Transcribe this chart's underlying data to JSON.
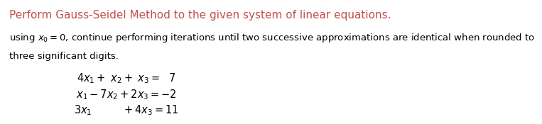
{
  "title": "Perform Gauss-Seidel Method to the given system of linear equations.",
  "title_color": "#C0504D",
  "subtitle_line1": "using $x_0 = 0$, continue performing iterations until two successive approximations are identical when rounded to",
  "subtitle_line2": "three significant digits.",
  "eq1": "$4x_1 + \\ x_2 + \\ x_3 = \\ \\ 7$",
  "eq2": "$x_1 - 7x_2 + 2x_3 = -2$",
  "eq3": "$3x_1 \\qquad\\quad + 4x_3 = 11$",
  "background_color": "#ffffff",
  "text_color": "#000000",
  "subtitle_fontsize": 9.5,
  "eq_fontsize": 10.5
}
